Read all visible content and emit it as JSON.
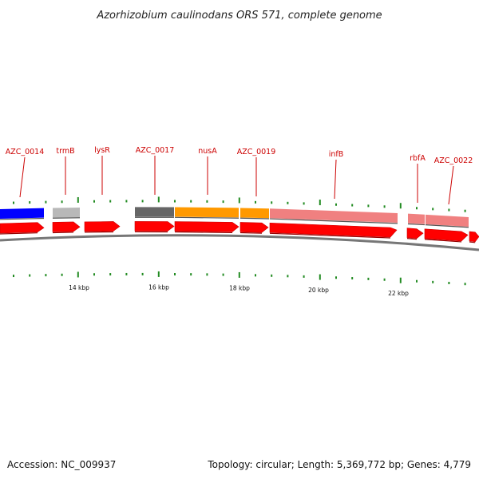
{
  "title": "Azorhizobium caulinodans ORS 571, complete genome",
  "footer": {
    "accession": "Accession: NC_009937",
    "summary": "Topology: circular; Length: 5,369,772 bp; Genes: 4,779"
  },
  "colors": {
    "label": "#cc0000",
    "gene_arrow": "#ff0000",
    "tick": "#228b22",
    "backbone": "#808080"
  },
  "scale": {
    "tick_labels": [
      {
        "text": "14 kbp",
        "position_kbp": 14
      },
      {
        "text": "16 kbp",
        "position_kbp": 16
      },
      {
        "text": "18 kbp",
        "position_kbp": 18
      },
      {
        "text": "20 kbp",
        "position_kbp": 20
      },
      {
        "text": "22 kbp",
        "position_kbp": 22
      }
    ]
  },
  "genes": [
    {
      "label": "AZC_0014",
      "feature_color": "#0000ff"
    },
    {
      "label": "trmB",
      "feature_color": "#b8b8b8"
    },
    {
      "label": "lysR",
      "feature_color": ""
    },
    {
      "label": "AZC_0017",
      "feature_color": "#666666"
    },
    {
      "label": "nusA",
      "feature_color": "#ff9900"
    },
    {
      "label": "AZC_0019",
      "feature_color": "#ff9900"
    },
    {
      "label": "infB",
      "feature_color": "#f08080"
    },
    {
      "label": "rbfA",
      "feature_color": "#f08080"
    },
    {
      "label": "AZC_0022",
      "feature_color": "#f08080"
    }
  ]
}
